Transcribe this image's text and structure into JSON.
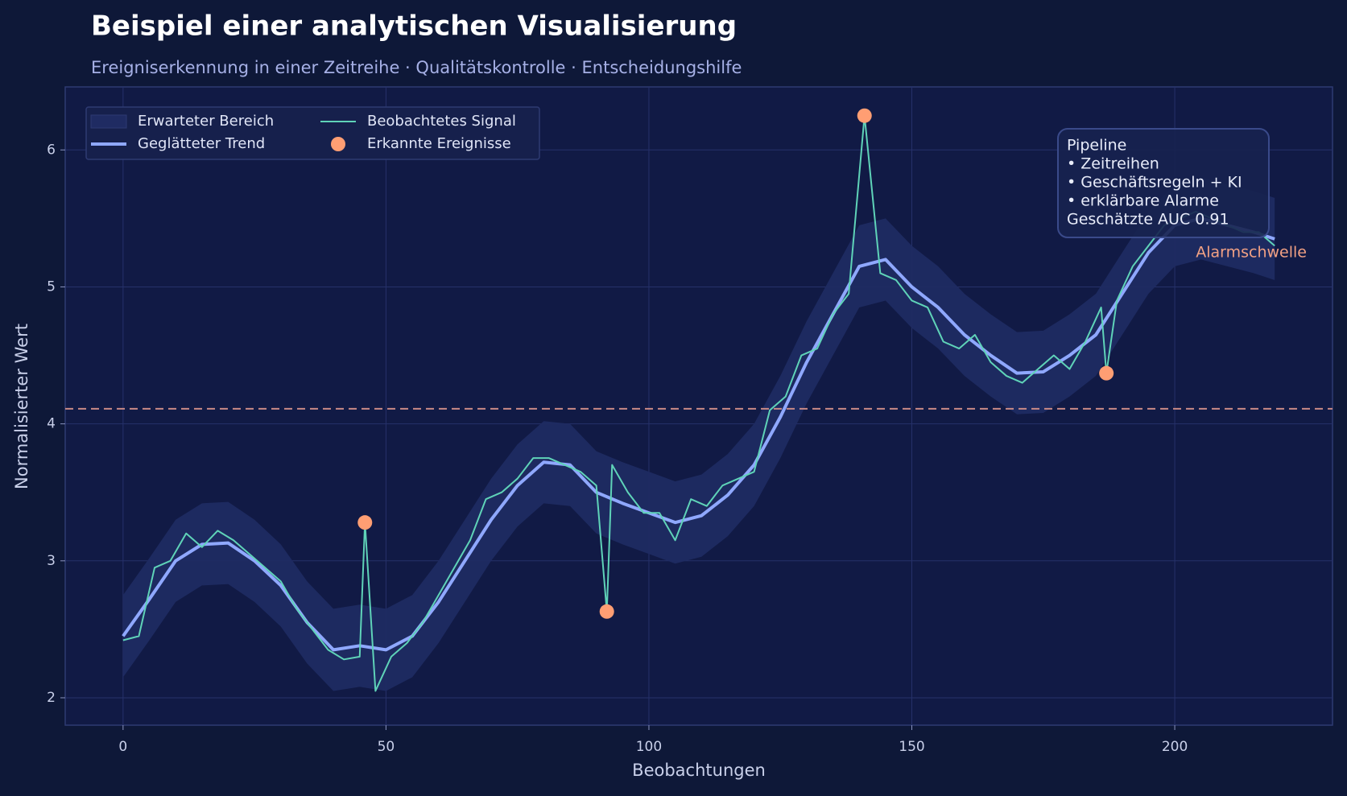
{
  "chart_data": {
    "type": "line",
    "title": "Beispiel einer analytischen Visualisierung",
    "subtitle": "Ereigniserkennung in einer Zeitreihe · Qualitätskontrolle · Entscheidungshilfe",
    "x_label": "Beobachtungen",
    "y_label": "Normalisierter Wert",
    "xlim": [
      -11,
      230
    ],
    "ylim": [
      1.8,
      6.46
    ],
    "xticks": [
      0,
      50,
      100,
      150,
      200
    ],
    "yticks": [
      2,
      3,
      4,
      5,
      6
    ],
    "grid": true,
    "legend": "upper left",
    "series": [
      {
        "name": "Erwarteter Bereich",
        "kind": "band",
        "color": "#1f2b62",
        "x": [
          0,
          5,
          10,
          15,
          20,
          25,
          30,
          35,
          40,
          45,
          50,
          55,
          60,
          65,
          70,
          75,
          80,
          85,
          90,
          95,
          100,
          105,
          110,
          115,
          120,
          125,
          130,
          135,
          140,
          145,
          150,
          155,
          160,
          165,
          170,
          175,
          180,
          185,
          190,
          195,
          200,
          205,
          210,
          215,
          219
        ],
        "upper": [
          2.75,
          3.02,
          3.3,
          3.42,
          3.43,
          3.3,
          3.12,
          2.85,
          2.65,
          2.68,
          2.65,
          2.75,
          3.0,
          3.3,
          3.6,
          3.85,
          4.02,
          4.0,
          3.8,
          3.72,
          3.65,
          3.58,
          3.63,
          3.78,
          4.0,
          4.35,
          4.75,
          5.1,
          5.45,
          5.5,
          5.3,
          5.15,
          4.95,
          4.8,
          4.67,
          4.68,
          4.8,
          4.95,
          5.25,
          5.55,
          5.75,
          5.8,
          5.75,
          5.7,
          5.65
        ],
        "lower": [
          2.15,
          2.42,
          2.7,
          2.82,
          2.83,
          2.7,
          2.52,
          2.25,
          2.05,
          2.08,
          2.05,
          2.15,
          2.4,
          2.7,
          3.0,
          3.25,
          3.42,
          3.4,
          3.2,
          3.12,
          3.05,
          2.98,
          3.03,
          3.18,
          3.4,
          3.75,
          4.15,
          4.5,
          4.85,
          4.9,
          4.7,
          4.55,
          4.35,
          4.2,
          4.07,
          4.08,
          4.2,
          4.35,
          4.65,
          4.95,
          5.15,
          5.2,
          5.15,
          5.1,
          5.05
        ]
      },
      {
        "name": "Geglätteter Trend",
        "kind": "line",
        "color": "#8fa8ff",
        "width": 4,
        "x": [
          0,
          5,
          10,
          15,
          20,
          25,
          30,
          35,
          40,
          45,
          50,
          55,
          60,
          65,
          70,
          75,
          80,
          85,
          90,
          95,
          100,
          105,
          110,
          115,
          120,
          125,
          130,
          135,
          140,
          145,
          150,
          155,
          160,
          165,
          170,
          175,
          180,
          185,
          190,
          195,
          200,
          205,
          210,
          215,
          219
        ],
        "values": [
          2.45,
          2.72,
          3.0,
          3.12,
          3.13,
          3.0,
          2.82,
          2.55,
          2.35,
          2.38,
          2.35,
          2.45,
          2.7,
          3.0,
          3.3,
          3.55,
          3.72,
          3.7,
          3.5,
          3.42,
          3.35,
          3.28,
          3.33,
          3.48,
          3.7,
          4.05,
          4.45,
          4.8,
          5.15,
          5.2,
          5.0,
          4.85,
          4.65,
          4.5,
          4.37,
          4.38,
          4.5,
          4.65,
          4.95,
          5.25,
          5.45,
          5.5,
          5.45,
          5.4,
          5.35
        ]
      },
      {
        "name": "Beobachtetes Signal",
        "kind": "line",
        "color": "#5fd3b8",
        "width": 2,
        "x": [
          0,
          3,
          6,
          9,
          12,
          15,
          18,
          21,
          24,
          27,
          30,
          33,
          36,
          39,
          42,
          45,
          46,
          48,
          51,
          54,
          57,
          60,
          63,
          66,
          69,
          72,
          75,
          78,
          81,
          84,
          87,
          90,
          92,
          93,
          96,
          99,
          102,
          105,
          108,
          111,
          114,
          117,
          120,
          123,
          126,
          129,
          132,
          135,
          138,
          141,
          144,
          147,
          150,
          153,
          156,
          159,
          162,
          165,
          168,
          171,
          174,
          177,
          180,
          183,
          186,
          187,
          189,
          192,
          195,
          198,
          201,
          204,
          207,
          210,
          213,
          216,
          219
        ],
        "values": [
          2.42,
          2.45,
          2.95,
          3.0,
          3.2,
          3.1,
          3.22,
          3.15,
          3.05,
          2.95,
          2.85,
          2.65,
          2.5,
          2.35,
          2.28,
          2.3,
          3.28,
          2.05,
          2.3,
          2.4,
          2.55,
          2.75,
          2.95,
          3.15,
          3.45,
          3.5,
          3.6,
          3.75,
          3.75,
          3.7,
          3.65,
          3.55,
          2.63,
          3.7,
          3.5,
          3.35,
          3.35,
          3.15,
          3.45,
          3.4,
          3.55,
          3.6,
          3.65,
          4.1,
          4.2,
          4.5,
          4.55,
          4.8,
          4.95,
          6.25,
          5.1,
          5.05,
          4.9,
          4.85,
          4.6,
          4.55,
          4.65,
          4.45,
          4.35,
          4.3,
          4.4,
          4.5,
          4.4,
          4.6,
          4.85,
          4.37,
          4.9,
          5.15,
          5.3,
          5.45,
          5.5,
          5.55,
          5.5,
          5.45,
          5.4,
          5.4,
          5.3
        ]
      },
      {
        "name": "Erkannte Ereignisse",
        "kind": "scatter",
        "color": "#ff9e73",
        "x": [
          46,
          92,
          141,
          187
        ],
        "values": [
          3.28,
          2.63,
          6.25,
          4.37
        ]
      }
    ],
    "threshold": {
      "value": 4.11,
      "label": "Alarmschwelle",
      "color": "#c98a86"
    },
    "annotation": [
      "Pipeline",
      "• Zeitreihen",
      "• Geschäftsregeln + KI",
      "• erklärbare Alarme",
      "Geschätzte AUC 0.91"
    ]
  }
}
